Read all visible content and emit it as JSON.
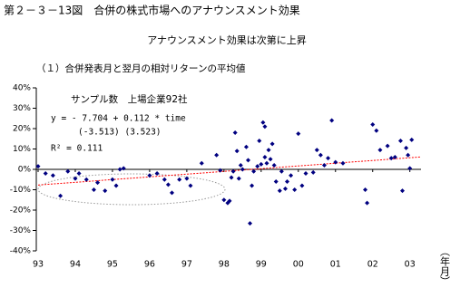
{
  "header": {
    "figure_title": "第２－３－13図　合併の株式市場へのアナウンスメント効果",
    "subtitle": "アナウンスメント効果は次第に上昇"
  },
  "chart_data": {
    "type": "scatter",
    "title": "（１）合併発表月と翌月の相対リターンの平均値",
    "x_label": "（年月）",
    "annotations": [
      "サンプル数　上場企業92社",
      "y = - 7.704 + 0.112 * time",
      "(-3.513)  (3.523)",
      "R² = 0.111"
    ],
    "color": "#000080",
    "x": [
      1993.0,
      1993.2,
      1993.4,
      1993.6,
      1993.8,
      1994.0,
      1994.1,
      1994.3,
      1994.5,
      1994.6,
      1994.8,
      1995.0,
      1995.1,
      1995.2,
      1995.3,
      1996.0,
      1996.2,
      1996.4,
      1996.5,
      1996.6,
      1996.8,
      1997.0,
      1997.1,
      1997.4,
      1997.8,
      1997.9,
      1998.0,
      1998.1,
      1998.15,
      1998.2,
      1998.25,
      1998.3,
      1998.35,
      1998.4,
      1998.45,
      1998.5,
      1998.6,
      1998.65,
      1998.7,
      1998.75,
      1998.8,
      1998.9,
      1998.95,
      1999.0,
      1999.05,
      1999.1,
      1999.1,
      1999.15,
      1999.2,
      1999.25,
      1999.3,
      1999.35,
      1999.4,
      1999.5,
      1999.55,
      1999.65,
      1999.7,
      1999.8,
      1999.9,
      2000.0,
      2000.1,
      2000.2,
      2000.4,
      2000.5,
      2000.6,
      2000.7,
      2000.8,
      2000.9,
      2001.0,
      2001.2,
      2001.8,
      2001.85,
      2002.0,
      2002.1,
      2002.2,
      2002.4,
      2002.5,
      2002.6,
      2002.75,
      2002.8,
      2002.9,
      2002.95,
      2003.0,
      2003.05
    ],
    "values": [
      1.5,
      -2,
      -3,
      -13,
      -1,
      -4.5,
      -2,
      -5,
      -10,
      -6.5,
      -10.5,
      -5,
      -8,
      0,
      0.5,
      -3,
      -2,
      -5,
      -7.5,
      -11.5,
      -5,
      -4.5,
      -8,
      3,
      7,
      -0.5,
      -15,
      -16.5,
      -15.5,
      -4,
      -1,
      18,
      9,
      -4.5,
      2,
      0,
      11,
      4.5,
      -26.5,
      -8,
      -1,
      1.5,
      14,
      2.5,
      23,
      21,
      6,
      3,
      9.5,
      5,
      12.5,
      2,
      -6,
      -10.5,
      -1,
      -9.5,
      -6,
      -3,
      -10,
      17.5,
      -8,
      -2,
      -1.5,
      9.5,
      7,
      2,
      5.5,
      24,
      3.5,
      3,
      -10,
      -16.5,
      22,
      19,
      9.5,
      11.5,
      5.5,
      6,
      14,
      -10.5,
      10.5,
      7,
      0.5,
      14.5
    ],
    "trend": {
      "color": "#ff0000",
      "x": [
        1993,
        2003.3
      ],
      "values": [
        -7.7,
        6.1
      ]
    },
    "xlim": [
      1993,
      2003.3
    ],
    "xticks": [
      {
        "value": 1993,
        "label": "93"
      },
      {
        "value": 1994,
        "label": "94"
      },
      {
        "value": 1995,
        "label": "95"
      },
      {
        "value": 1996,
        "label": "96"
      },
      {
        "value": 1997,
        "label": "97"
      },
      {
        "value": 1998,
        "label": "98"
      },
      {
        "value": 1999,
        "label": "99"
      },
      {
        "value": 2000,
        "label": "00"
      },
      {
        "value": 2001,
        "label": "01"
      },
      {
        "value": 2002,
        "label": "02"
      },
      {
        "value": 2003,
        "label": "03"
      }
    ],
    "ylim": [
      -40,
      40
    ],
    "yticks": [
      {
        "value": -40,
        "label": "-40%"
      },
      {
        "value": -30,
        "label": "-30%"
      },
      {
        "value": -20,
        "label": "-20%"
      },
      {
        "value": -10,
        "label": "-10%"
      },
      {
        "value": 0,
        "label": "0%"
      },
      {
        "value": 10,
        "label": "10%"
      },
      {
        "value": 20,
        "label": "20%"
      },
      {
        "value": 30,
        "label": "30%"
      },
      {
        "value": 40,
        "label": "40%"
      }
    ]
  }
}
